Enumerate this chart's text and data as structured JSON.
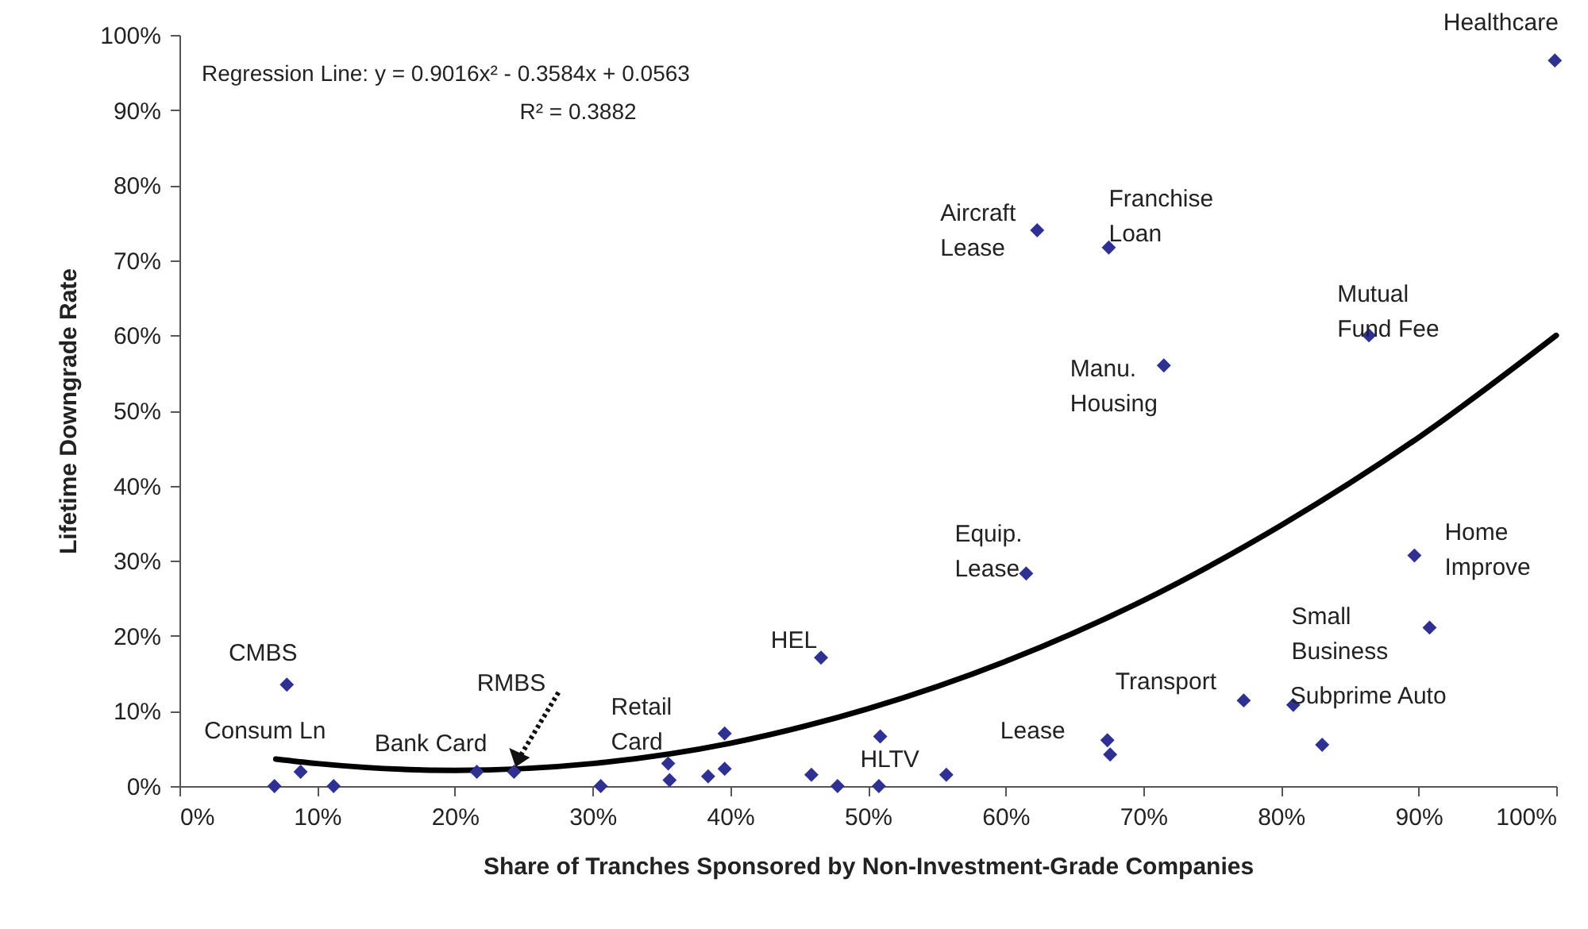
{
  "chart_data": {
    "type": "scatter",
    "xlabel": "Share of Tranches Sponsored by Non-Investment-Grade Companies",
    "ylabel": "Lifetime Downgrade Rate",
    "xlim": [
      0,
      100
    ],
    "ylim": [
      0,
      100
    ],
    "xticks": [
      {
        "value": 0,
        "label": "0%"
      },
      {
        "value": 10,
        "label": "10%"
      },
      {
        "value": 20,
        "label": "20%"
      },
      {
        "value": 30,
        "label": "30%"
      },
      {
        "value": 40,
        "label": "40%"
      },
      {
        "value": 50,
        "label": "50%"
      },
      {
        "value": 60,
        "label": "60%"
      },
      {
        "value": 70,
        "label": "70%"
      },
      {
        "value": 80,
        "label": "80%"
      },
      {
        "value": 90,
        "label": "90%"
      },
      {
        "value": 100,
        "label": "100%"
      }
    ],
    "yticks": [
      {
        "value": 0,
        "label": "0%"
      },
      {
        "value": 10,
        "label": "10%"
      },
      {
        "value": 20,
        "label": "20%"
      },
      {
        "value": 30,
        "label": "30%"
      },
      {
        "value": 40,
        "label": "40%"
      },
      {
        "value": 50,
        "label": "50%"
      },
      {
        "value": 60,
        "label": "60%"
      },
      {
        "value": 70,
        "label": "70%"
      },
      {
        "value": 80,
        "label": "80%"
      },
      {
        "value": 90,
        "label": "90%"
      },
      {
        "value": 100,
        "label": "100%"
      }
    ],
    "grid": false,
    "series": [
      {
        "type": "scatter",
        "marker": "diamond",
        "color": "#2e3192",
        "x": [
          6.9,
          7.8,
          8.8,
          11.2,
          21.6,
          24.3,
          30.6,
          35.5,
          35.6,
          38.4,
          39.6,
          39.6,
          45.9,
          47.8,
          46.6,
          50.9,
          50.8,
          55.7,
          61.5,
          62.3,
          67.5,
          67.4,
          67.6,
          71.5,
          77.3,
          80.9,
          83.0,
          86.4,
          89.7,
          90.8,
          99.9
        ],
        "values": [
          0,
          13.5,
          1.9,
          0,
          1.9,
          1.9,
          0,
          3.0,
          0.8,
          1.3,
          7.0,
          2.3,
          1.5,
          0,
          17.1,
          6.6,
          0,
          1.5,
          28.3,
          74.0,
          71.7,
          6.1,
          4.2,
          56.0,
          11.4,
          10.8,
          5.5,
          60.0,
          30.7,
          21.1,
          96.6
        ]
      },
      {
        "type": "line",
        "marker": "none",
        "color": "#000000",
        "x": [
          7,
          10,
          20,
          30,
          40,
          50,
          60,
          70,
          80,
          90,
          100
        ],
        "values": [
          3.6,
          3.0,
          2.1,
          3.0,
          5.7,
          10.3,
          16.6,
          24.7,
          34.7,
          46.4,
          60.0
        ]
      }
    ],
    "annotations": [
      {
        "text": "CMBS",
        "x": 7.8,
        "y": 13.5
      },
      {
        "text": "Consum Ln",
        "x": 6.9,
        "y": 0
      },
      {
        "text": "Bank Card",
        "x": 21.6,
        "y": 1.9
      },
      "RMBS",
      {
        "text": "Retail\nCard",
        "x": 35.5,
        "y": 3.0
      },
      {
        "text": "HEL",
        "x": 46.6,
        "y": 17.1
      },
      {
        "text": "HLTV",
        "x": 50.9,
        "y": 0
      },
      {
        "text": "Lease",
        "x": 67.4,
        "y": 6.1
      },
      {
        "text": "Equip.\nLease",
        "x": 61.5,
        "y": 28.3
      },
      {
        "text": "Aircraft\nLease",
        "x": 62.3,
        "y": 74.0
      },
      {
        "text": "Franchise\nLoan",
        "x": 67.5,
        "y": 71.7
      },
      {
        "text": "Manu.\nHousing",
        "x": 71.5,
        "y": 56.0
      },
      {
        "text": "Mutual\nFund Fee",
        "x": 86.4,
        "y": 60.0
      },
      {
        "text": "Transport",
        "x": 77.3,
        "y": 11.4
      },
      {
        "text": "Subprime Auto",
        "x": 80.9,
        "y": 10.8
      },
      {
        "text": "Small\nBusiness",
        "x": 90.8,
        "y": 21.1
      },
      {
        "text": "Home\nImprove",
        "x": 89.7,
        "y": 30.7
      },
      {
        "text": "Healthcare",
        "x": 99.9,
        "y": 96.6
      },
      "Regression Line: y = 0.9016x² - 0.3584x + 0.0563",
      "R² = 0.3882"
    ]
  }
}
